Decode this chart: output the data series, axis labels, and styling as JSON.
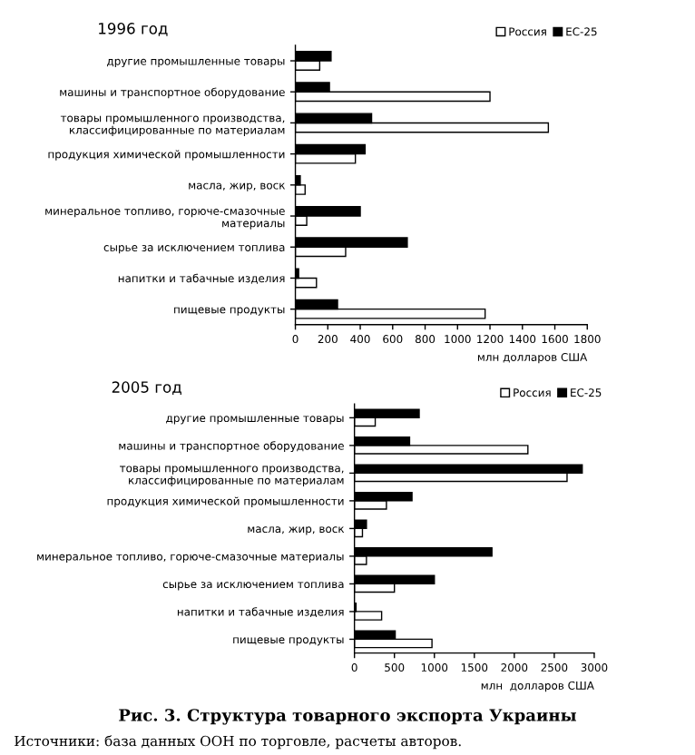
{
  "chart_data": [
    {
      "type": "bar",
      "orientation": "horizontal",
      "title": "1996 год",
      "xlabel": "млн долларов США",
      "categories": [
        "другие промышленные товары",
        "машины и транспортное оборудование",
        "товары промышленного производства,\nклассифицированные по материалам",
        "продукция химической промышленности",
        "масла, жир, воск",
        "минеральное топливо, горюче-смазочные\nматериалы",
        "сырье за исключением топлива",
        "напитки и табачные изделия",
        "пищевые продукты"
      ],
      "series": [
        {
          "name": "Россия",
          "color": "#ffffff",
          "values": [
            150,
            1200,
            1560,
            370,
            60,
            70,
            310,
            130,
            1170
          ]
        },
        {
          "name": "ЕС-25",
          "color": "#000000",
          "values": [
            220,
            210,
            470,
            430,
            30,
            400,
            690,
            20,
            260
          ]
        }
      ],
      "xlim": [
        0,
        1800
      ],
      "xticks": [
        0,
        200,
        400,
        600,
        800,
        1000,
        1200,
        1400,
        1600,
        1800
      ],
      "legend": "top right",
      "grid": false
    },
    {
      "type": "bar",
      "orientation": "horizontal",
      "title": "2005 год",
      "xlabel": "млн  долларов США",
      "categories": [
        "другие промышленные товары",
        "машины и транспортное оборудование",
        "товары промышленного производства,\nклассифицированные по материалам",
        "продукция химической промышленности",
        "масла, жир, воск",
        "минеральное топливо, горюче-смазочные материалы",
        "сырье за исключением топлива",
        "напитки и табачные изделия",
        "пищевые продукты"
      ],
      "series": [
        {
          "name": "Россия",
          "color": "#ffffff",
          "values": [
            260,
            2170,
            2660,
            400,
            100,
            150,
            500,
            340,
            970
          ]
        },
        {
          "name": "ЕС-25",
          "color": "#000000",
          "values": [
            810,
            690,
            2850,
            720,
            150,
            1720,
            1000,
            20,
            510
          ]
        }
      ],
      "xlim": [
        0,
        3000
      ],
      "xticks": [
        0,
        500,
        1000,
        1500,
        2000,
        2500,
        3000
      ],
      "legend": "top right",
      "grid": false,
      "annotations": [
        "Рис. 3. Структура товарного экспорта Украины",
        "Источники: база данных ООН по торговле, расчеты авторов."
      ]
    }
  ]
}
